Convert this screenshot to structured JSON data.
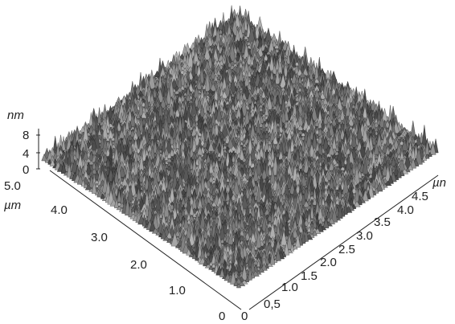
{
  "chart_data": {
    "type": "surface3d",
    "z_axis": {
      "unit": "nm",
      "ticks": [
        "0",
        "4",
        "8"
      ],
      "range": [
        0,
        8
      ]
    },
    "y_axis": {
      "unit": "µm",
      "ticks": [
        "0",
        "1.0",
        "2.0",
        "3.0",
        "4.0",
        "5.0"
      ],
      "range": [
        0,
        5
      ]
    },
    "x_axis": {
      "unit": "µn",
      "ticks": [
        "0",
        "0,5",
        "1.0",
        "1.5",
        "2.0",
        "2.5",
        "3.0",
        "3.5",
        "4.0",
        "4.5"
      ],
      "range": [
        0,
        5
      ]
    },
    "surface_color": "#6e6e6e",
    "background": "#ffffff"
  }
}
